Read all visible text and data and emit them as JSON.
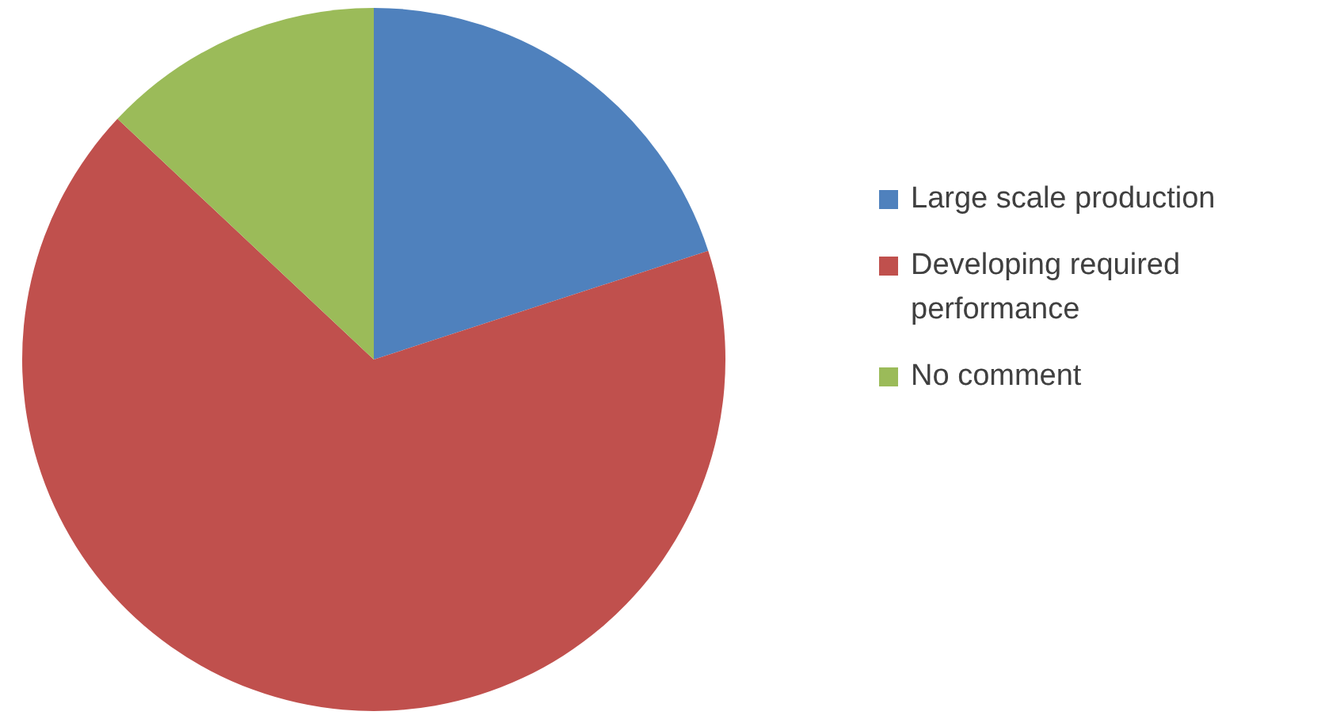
{
  "chart_data": {
    "type": "pie",
    "categories": [
      "Large scale production",
      "Developing required performance",
      "No comment"
    ],
    "values": [
      20,
      67,
      13
    ],
    "colors": [
      "#4f81bd",
      "#c0504d",
      "#9bbb59"
    ],
    "legend": "right"
  }
}
